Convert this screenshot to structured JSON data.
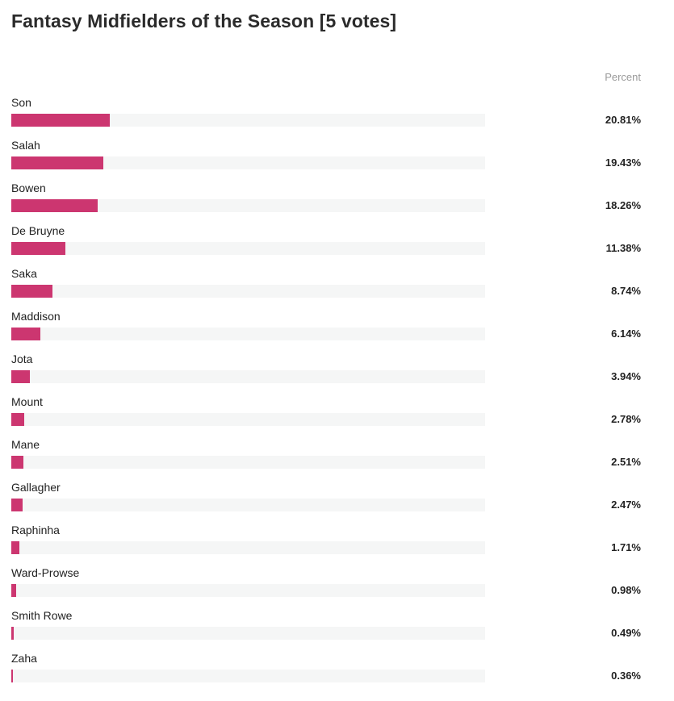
{
  "chart_data": {
    "type": "bar",
    "orientation": "horizontal",
    "title": "Fantasy Midfielders of the Season [5 votes]",
    "value_header": "Percent",
    "unit": "%",
    "xlim": [
      0,
      100
    ],
    "bar_color": "#cc3670",
    "track_color": "#f5f6f6",
    "categories": [
      "Son",
      "Salah",
      "Bowen",
      "De Bruyne",
      "Saka",
      "Maddison",
      "Jota",
      "Mount",
      "Mane",
      "Gallagher",
      "Raphinha",
      "Ward-Prowse",
      "Smith Rowe",
      "Zaha"
    ],
    "values": [
      20.81,
      19.43,
      18.26,
      11.38,
      8.74,
      6.14,
      3.94,
      2.78,
      2.51,
      2.47,
      1.71,
      0.98,
      0.49,
      0.36
    ],
    "value_labels": [
      "20.81%",
      "19.43%",
      "18.26%",
      "11.38%",
      "8.74%",
      "6.14%",
      "3.94%",
      "2.78%",
      "2.51%",
      "2.47%",
      "1.71%",
      "0.98%",
      "0.49%",
      "0.36%"
    ]
  }
}
